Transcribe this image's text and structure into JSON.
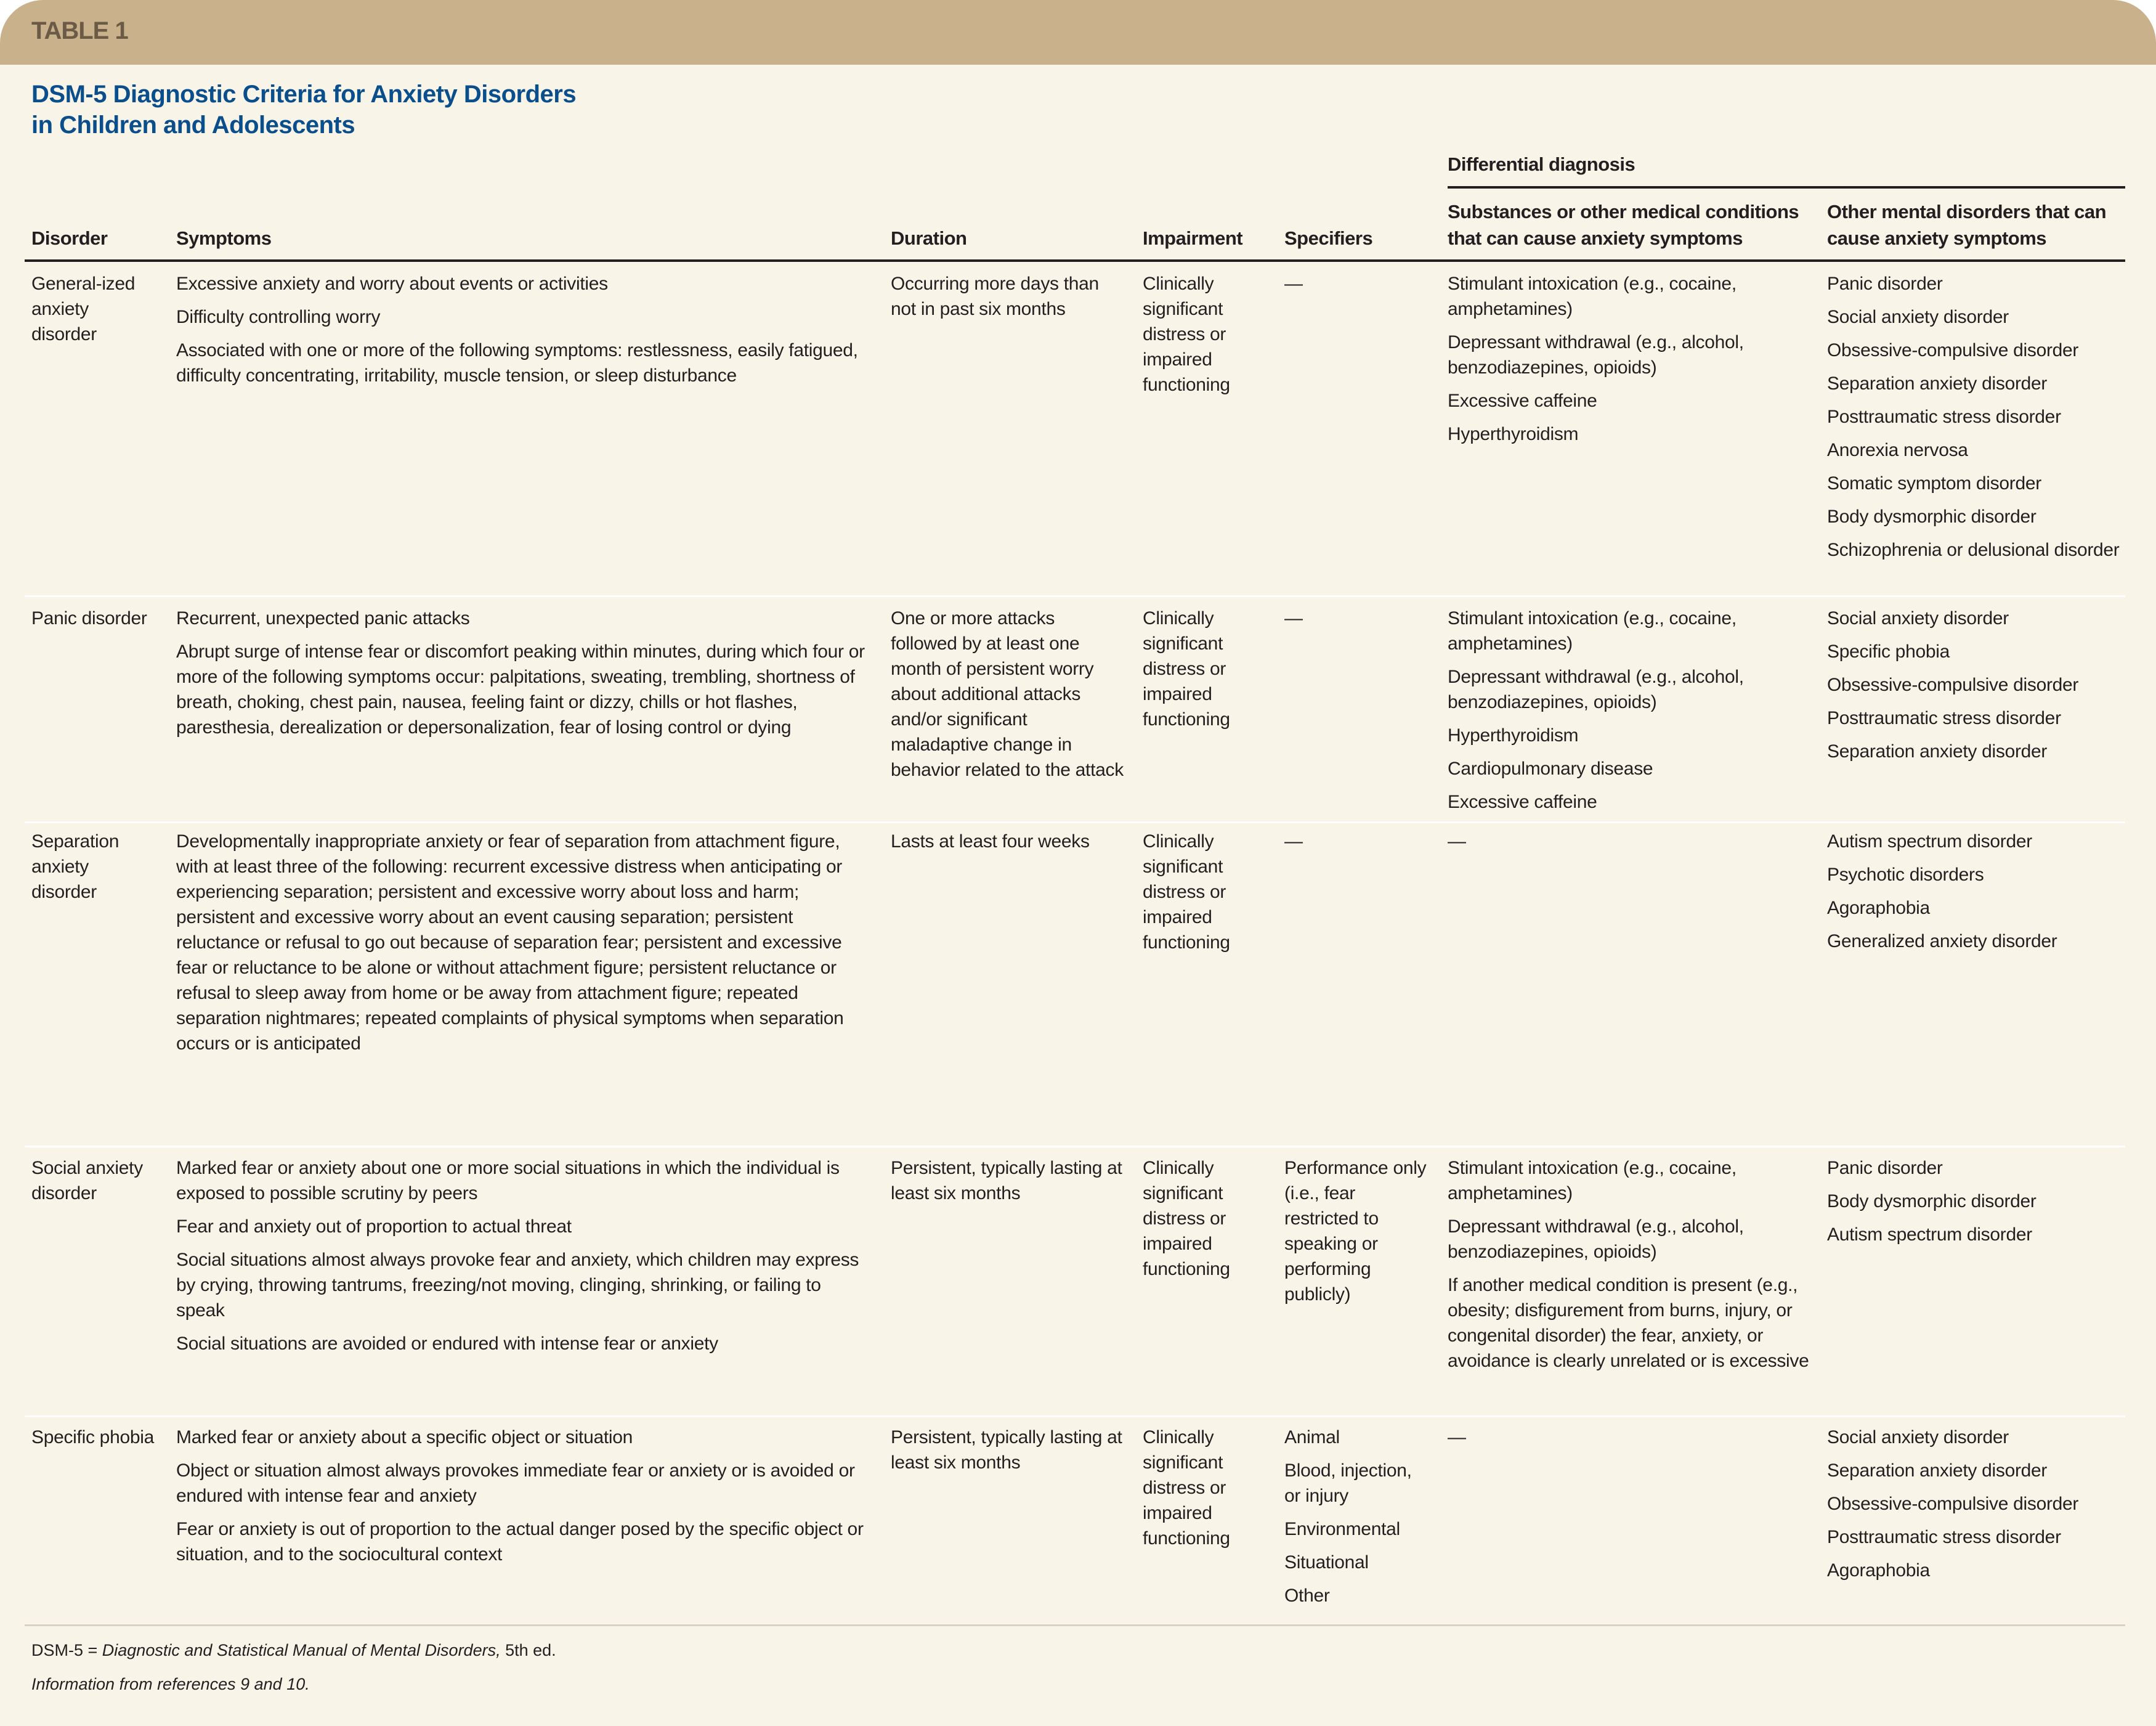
{
  "band_label": "TABLE 1",
  "title_line1": "DSM-5 Diagnostic Criteria for Anxiety Disorders",
  "title_line2": "in Children and Adolescents",
  "colors": {
    "band": "#c9b18b",
    "background": "#f8f4e8",
    "title": "#0a4e8c",
    "band_text": "#6b5a45"
  },
  "headers": {
    "disorder": "Disorder",
    "symptoms": "Symptoms",
    "duration": "Duration",
    "impairment": "Impairment",
    "specifiers": "Specifiers",
    "differential": "Differential diagnosis",
    "substances": [
      "Substances or other medical conditions",
      "that can cause anxiety symptoms"
    ],
    "other": [
      "Other mental disorders that can",
      "cause anxiety symptoms"
    ]
  },
  "rows": [
    {
      "disorder": "General-ized anxiety disorder",
      "symptoms": [
        "Excessive anxiety and worry about events or activities",
        "Difficulty controlling worry",
        "Associated with one or more of the following symptoms: restlessness, easily fatigued, difficulty concentrating, irritability, muscle tension, or sleep disturbance"
      ],
      "duration": "Occurring more days than not in past six months",
      "impairment": "Clinically significant distress or impaired functioning",
      "specifiers": [
        "—"
      ],
      "substances": [
        "Stimulant intoxication (e.g., cocaine, amphetamines)",
        "Depressant withdrawal (e.g., alcohol, benzodiazepines, opioids)",
        "Excessive caffeine",
        "Hyperthyroidism"
      ],
      "other": [
        "Panic disorder",
        "Social anxiety disorder",
        "Obsessive-compulsive disorder",
        "Separation anxiety disorder",
        "Posttraumatic stress disorder",
        "Anorexia nervosa",
        "Somatic symptom disorder",
        "Body dysmorphic disorder",
        "Schizophrenia or delusional disorder"
      ]
    },
    {
      "disorder": "Panic disorder",
      "symptoms": [
        "Recurrent, unexpected panic attacks",
        "Abrupt surge of intense fear or discomfort peaking within minutes, during which four or more of the following symptoms occur: palpitations, sweating, trembling, shortness of breath, choking, chest pain, nausea, feeling faint or dizzy, chills or hot flashes, paresthesia, derealization or depersonalization, fear of losing control or dying"
      ],
      "duration": "One or more attacks followed by at least one month of persistent worry about additional attacks and/or significant maladaptive change in behavior related to the attack",
      "impairment": "Clinically significant distress or impaired functioning",
      "specifiers": [
        "—"
      ],
      "substances": [
        "Stimulant intoxication (e.g., cocaine, amphetamines)",
        "Depressant withdrawal (e.g., alcohol, benzodiazepines, opioids)",
        "Hyperthyroidism",
        "Cardiopulmonary disease",
        "Excessive caffeine"
      ],
      "other": [
        "Social anxiety disorder",
        "Specific phobia",
        "Obsessive-compulsive disorder",
        "Posttraumatic stress disorder",
        "Separation anxiety disorder"
      ]
    },
    {
      "disorder": "Separation anxiety disorder",
      "symptoms": [
        "Developmentally inappropriate anxiety or fear of separation from attachment figure, with at least three of the following: recurrent excessive distress when anticipating or experiencing separation; persistent and excessive worry about loss and harm; persistent and excessive worry about an event causing separation; persistent reluctance or refusal to go out because of separation fear; persistent and excessive fear or reluctance to be alone or without attachment figure; persistent reluctance or refusal to sleep away from home or be away from attachment figure; repeated separation nightmares; repeated complaints of physical symptoms when separation occurs or is anticipated"
      ],
      "duration": "Lasts at least four weeks",
      "impairment": "Clinically significant distress or impaired functioning",
      "specifiers": [
        "—"
      ],
      "substances": [
        "—"
      ],
      "other": [
        "Autism spectrum disorder",
        "Psychotic disorders",
        "Agoraphobia",
        "Generalized anxiety disorder"
      ]
    },
    {
      "disorder": "Social anxiety disorder",
      "symptoms": [
        "Marked fear or anxiety about one or more social situations in which the individual is exposed to possible scrutiny by peers",
        "Fear and anxiety out of proportion to actual threat",
        "Social situations almost always provoke fear and anxiety, which children may express by crying, throwing tantrums, freezing/not moving, clinging, shrinking, or failing to speak",
        "Social situations are avoided or endured with intense fear or anxiety"
      ],
      "duration": "Persistent, typically lasting at least six months",
      "impairment": "Clinically significant distress or impaired functioning",
      "specifiers": [
        "Performance only (i.e., fear restricted to speaking or performing publicly)"
      ],
      "substances": [
        "Stimulant intoxication (e.g., cocaine, amphetamines)",
        "Depressant withdrawal (e.g., alcohol, benzodiazepines, opioids)",
        "If another medical condition is present (e.g., obesity; disfigurement from burns, injury, or congenital disorder) the fear, anxiety, or avoidance is clearly unrelated or is excessive"
      ],
      "other": [
        "Panic disorder",
        "Body dysmorphic disorder",
        "Autism spectrum disorder"
      ]
    },
    {
      "disorder": "Specific phobia",
      "symptoms": [
        "Marked fear or anxiety about a specific object or situation",
        "Object or situation almost always provokes immediate fear or anxiety or is avoided or endured with intense fear and anxiety",
        "Fear or anxiety is out of proportion to the actual danger posed by the specific object or situation, and to the sociocultural context"
      ],
      "duration": "Persistent, typically lasting at least six months",
      "impairment": "Clinically significant distress or impaired functioning",
      "specifiers": [
        "Animal",
        "Blood, injection, or injury",
        "Environmental",
        "Situational",
        "Other"
      ],
      "substances": [
        "—"
      ],
      "other": [
        "Social anxiety disorder",
        "Separation anxiety disorder",
        "Obsessive-compulsive disorder",
        "Posttraumatic stress disorder",
        "Agoraphobia"
      ]
    }
  ],
  "footnote": {
    "abbr_prefix": "DSM-5 = ",
    "abbr_italic": "Diagnostic and Statistical Manual of Mental Disorders,",
    "abbr_suffix": " 5th ed.",
    "source": "Information from references 9 and 10."
  }
}
